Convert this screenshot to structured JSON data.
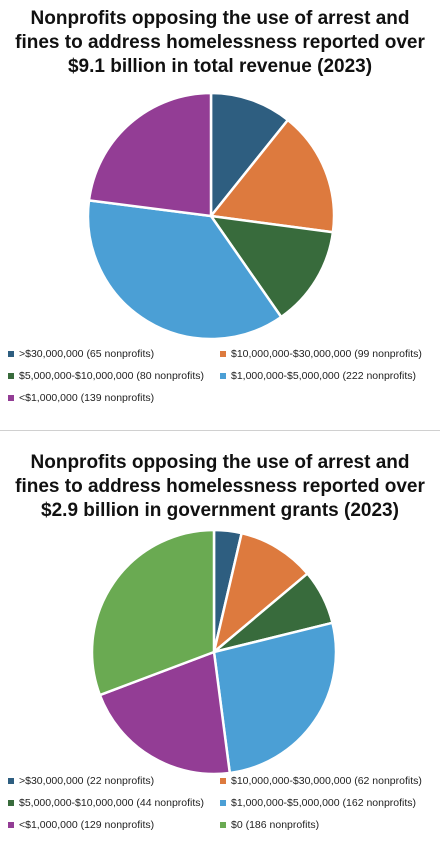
{
  "charts": [
    {
      "type": "pie",
      "title": "Nonprofits opposing the use of arrest and fines to address homelessness reported over $9.1 billion in total revenue (2023)",
      "slices": [
        {
          "label": ">$30,000,000 (65 nonprofits)",
          "value": 65,
          "color": "#2e5e80"
        },
        {
          "label": "$10,000,000-$30,000,000 (99 nonprofits)",
          "value": 99,
          "color": "#dd7a3e"
        },
        {
          "label": "$5,000,000-$10,000,000 (80 nonprofits)",
          "value": 80,
          "color": "#386b3c"
        },
        {
          "label": "$1,000,000-$5,000,000 (222 nonprofits)",
          "value": 222,
          "color": "#4b9fd5"
        },
        {
          "label": "<$1,000,000 (139 nonprofits)",
          "value": 139,
          "color": "#933d95"
        }
      ]
    },
    {
      "type": "pie",
      "title": "Nonprofits opposing the use of arrest and fines to address homelessness reported over $2.9 billion in government grants (2023)",
      "slices": [
        {
          "label": ">$30,000,000 (22 nonprofits)",
          "value": 22,
          "color": "#2e5e80"
        },
        {
          "label": "$10,000,000-$30,000,000 (62 nonprofits)",
          "value": 62,
          "color": "#dd7a3e"
        },
        {
          "label": "$5,000,000-$10,000,000 (44 nonprofits)",
          "value": 44,
          "color": "#386b3c"
        },
        {
          "label": "$1,000,000-$5,000,000 (162 nonprofits)",
          "value": 162,
          "color": "#4b9fd5"
        },
        {
          "label": "<$1,000,000 (129 nonprofits)",
          "value": 129,
          "color": "#933d95"
        },
        {
          "label": "$0 (186 nonprofits)",
          "value": 186,
          "color": "#6aaa52"
        }
      ]
    }
  ]
}
